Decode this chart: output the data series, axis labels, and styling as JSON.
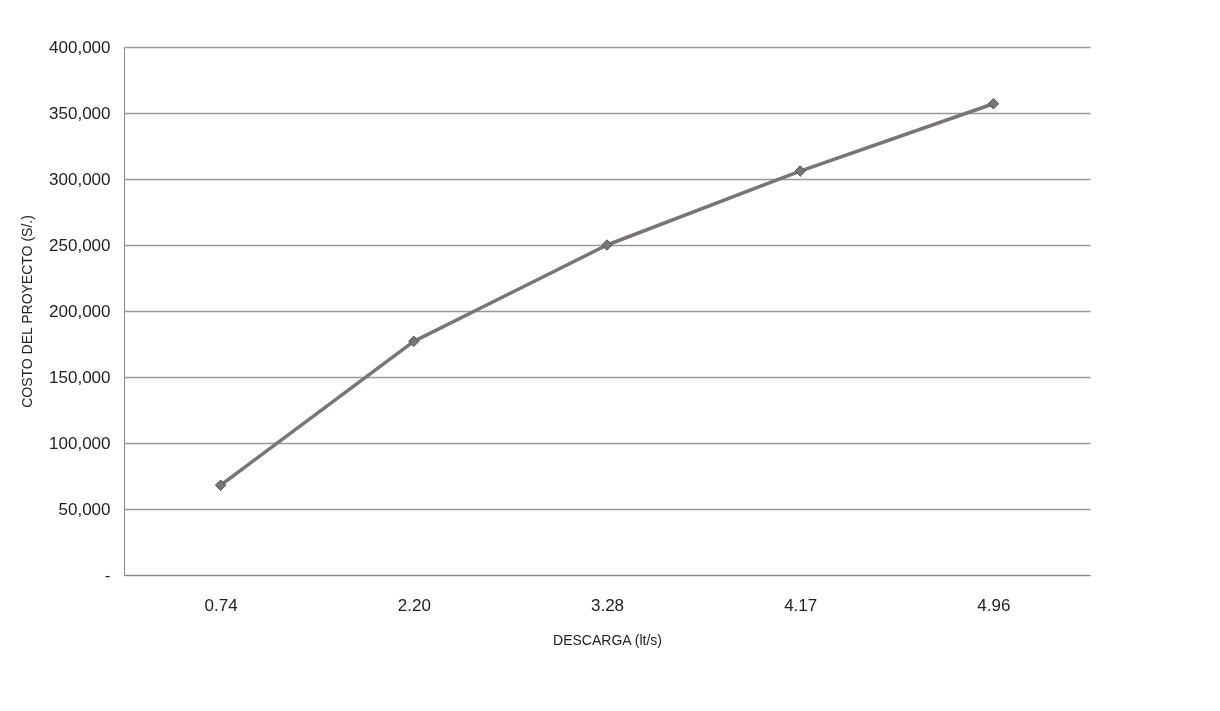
{
  "chart_data": {
    "type": "line",
    "xlabel": "DESCARGA (lt/s)",
    "ylabel": "COSTO DEL PROYECTO (S/.)",
    "categories": [
      "0.74",
      "2.20",
      "3.28",
      "4.17",
      "4.96"
    ],
    "series": [
      {
        "color": "#7a7479",
        "values": [
          68000,
          177000,
          250000,
          306000,
          357000
        ]
      }
    ],
    "ylim": [
      0,
      400000
    ],
    "yticks": [
      {
        "value": 0,
        "label": "-"
      },
      {
        "value": 50000,
        "label": "50,000"
      },
      {
        "value": 100000,
        "label": "100,000"
      },
      {
        "value": 150000,
        "label": "150,000"
      },
      {
        "value": 200000,
        "label": "200,000"
      },
      {
        "value": 250000,
        "label": "250,000"
      },
      {
        "value": 300000,
        "label": "300,000"
      },
      {
        "value": 350000,
        "label": "350,000"
      },
      {
        "value": 400000,
        "label": "400,000"
      }
    ],
    "grid": "y",
    "marker": "diamond",
    "legend": false
  }
}
